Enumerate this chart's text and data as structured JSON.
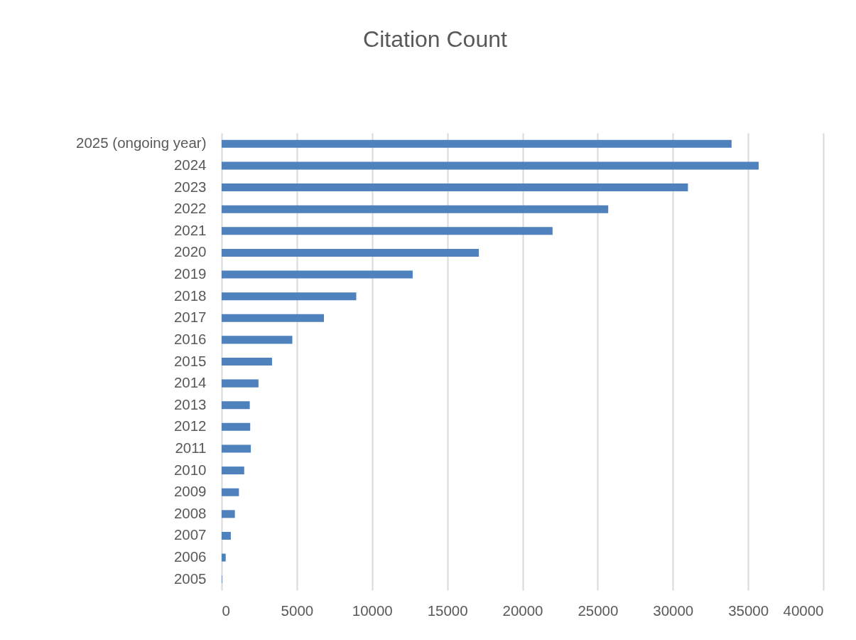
{
  "chart_data": {
    "type": "bar",
    "orientation": "horizontal",
    "title": "Citation Count",
    "categories": [
      "2025 (ongoing year)",
      "2024",
      "2023",
      "2022",
      "2021",
      "2020",
      "2019",
      "2018",
      "2017",
      "2016",
      "2015",
      "2014",
      "2013",
      "2012",
      "2011",
      "2010",
      "2009",
      "2008",
      "2007",
      "2006",
      "2005"
    ],
    "values": [
      33900,
      35700,
      31000,
      25700,
      22000,
      17100,
      12700,
      8950,
      6800,
      4700,
      3350,
      2450,
      1870,
      1900,
      1940,
      1500,
      1150,
      880,
      610,
      270,
      30
    ],
    "color": "#4f81bd",
    "xlim": [
      0,
      40000
    ],
    "xticks": [
      0,
      5000,
      10000,
      15000,
      20000,
      25000,
      30000,
      35000,
      40000
    ],
    "grid": "x"
  }
}
